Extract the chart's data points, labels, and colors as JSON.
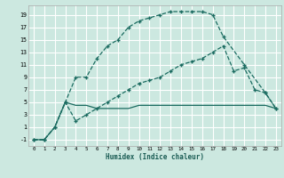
{
  "title": "",
  "xlabel": "Humidex (Indice chaleur)",
  "bg_color": "#cce8e0",
  "grid_color": "#ffffff",
  "line_color": "#1a6b60",
  "xlim": [
    -0.5,
    23.5
  ],
  "ylim": [
    -2,
    20.5
  ],
  "yticks": [
    -1,
    1,
    3,
    5,
    7,
    9,
    11,
    13,
    15,
    17,
    19
  ],
  "xticks": [
    0,
    1,
    2,
    3,
    4,
    5,
    6,
    7,
    8,
    9,
    10,
    11,
    12,
    13,
    14,
    15,
    16,
    17,
    18,
    19,
    20,
    21,
    22,
    23
  ],
  "line1_x": [
    0,
    1,
    2,
    3,
    4,
    5,
    6,
    7,
    8,
    9,
    10,
    11,
    12,
    13,
    14,
    15,
    16,
    17,
    18,
    20,
    22,
    23
  ],
  "line1_y": [
    -1,
    -1,
    1,
    5,
    9,
    9,
    12,
    14,
    15,
    17,
    18,
    18.5,
    19,
    19.5,
    19.5,
    19.5,
    19.5,
    19,
    15.5,
    11,
    6.5,
    4
  ],
  "line2_x": [
    0,
    1,
    2,
    3,
    4,
    5,
    6,
    7,
    8,
    9,
    10,
    11,
    12,
    13,
    14,
    15,
    16,
    17,
    18,
    19,
    20,
    21,
    22,
    23
  ],
  "line2_y": [
    -1,
    -1,
    1,
    5,
    4.5,
    4.5,
    4,
    4,
    4,
    4,
    4.5,
    4.5,
    4.5,
    4.5,
    4.5,
    4.5,
    4.5,
    4.5,
    4.5,
    4.5,
    4.5,
    4.5,
    4.5,
    4
  ],
  "line3_x": [
    0,
    1,
    2,
    3,
    4,
    5,
    6,
    7,
    8,
    9,
    10,
    11,
    12,
    13,
    14,
    15,
    16,
    17,
    18,
    19,
    20,
    21,
    22,
    23
  ],
  "line3_y": [
    -1,
    -1,
    1,
    5,
    2,
    3,
    4,
    5,
    6,
    7,
    8,
    8.5,
    9,
    10,
    11,
    11.5,
    12,
    13,
    14,
    10,
    10.5,
    7,
    6.5,
    4
  ]
}
